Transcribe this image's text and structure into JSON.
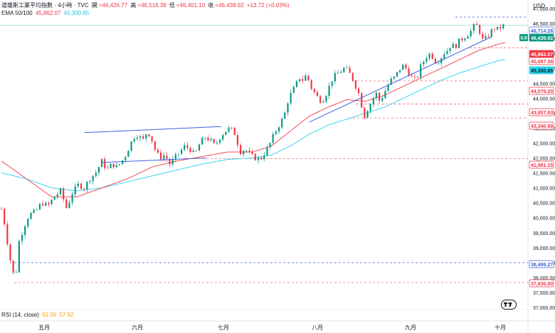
{
  "header": {
    "title": "道瓊斯工業平均指數 · 4小時 · TVC",
    "open_label": "開",
    "open": "=46,426.77",
    "high_label": "高",
    "high": "=46,518.39",
    "low_label": "低",
    "low": "=46,401.10",
    "close_label": "收",
    "close": "=46,439.92",
    "change": "+13.72 (+0.03%)"
  },
  "ema": {
    "label": "EMA 50/100",
    "ema50": "45,862.07",
    "ema100": "45,300.85"
  },
  "rsi": {
    "label": "RSI (14, close)",
    "value1": "61.06",
    "value2": "57.92"
  },
  "currency": "USD",
  "symbol_tag": "DJI",
  "colors": {
    "up": "#089981",
    "down": "#f23645",
    "ema50": "#f23645",
    "ema100": "#22d3ee",
    "trendline": "#3d63dd",
    "support": "#e74c5c",
    "current": "#089981"
  },
  "chart_data": {
    "type": "candlestick",
    "timeframe": "4h",
    "y_axis": {
      "min": 37000,
      "max": 47000,
      "ticks": [
        47000,
        46500,
        46000,
        45500,
        45000,
        44500,
        44000,
        43500,
        43000,
        42500,
        42000,
        41500,
        41000,
        40500,
        40000,
        39500,
        39000,
        38500,
        38000,
        37500,
        37000
      ]
    },
    "x_axis": {
      "labels": [
        "五月",
        "六月",
        "七月",
        "八月",
        "九月",
        "十月"
      ]
    },
    "grid": false,
    "price_labels": [
      {
        "value": 46714.26,
        "text": "46,714.26",
        "style": "blue"
      },
      {
        "value": 46439.92,
        "text": "46,439.92",
        "style": "current"
      },
      {
        "value": 45862.07,
        "text": "45,862.07",
        "style": "ema50"
      },
      {
        "value": 45687.38,
        "text": "45,687.38",
        "style": "red"
      },
      {
        "value": 45300.85,
        "text": "45,300.85",
        "style": "ema100"
      },
      {
        "value": 44579.2,
        "text": "44,579.20",
        "style": "red"
      },
      {
        "value": 43807.83,
        "text": "43,807.83",
        "style": "red"
      },
      {
        "value": 43340.69,
        "text": "43,340.69",
        "style": "red"
      },
      {
        "value": 41981.15,
        "text": "41,981.15",
        "style": "red"
      },
      {
        "value": 38499.27,
        "text": "38,499.27",
        "style": "blue"
      },
      {
        "value": 37830.0,
        "text": "37,830.00",
        "style": "red"
      }
    ],
    "horizontal_levels": [
      {
        "value": 46714.26,
        "color": "blue"
      },
      {
        "value": 45687.38,
        "color": "red"
      },
      {
        "value": 44579.2,
        "color": "red"
      },
      {
        "value": 43807.83,
        "color": "red"
      },
      {
        "value": 43340.69,
        "color": "red"
      },
      {
        "value": 41981.15,
        "color": "red"
      },
      {
        "value": 38499.27,
        "color": "blue"
      },
      {
        "value": 37830.0,
        "color": "red"
      }
    ],
    "price_path": [
      [
        0,
        40300
      ],
      [
        3,
        39700
      ],
      [
        6,
        38800
      ],
      [
        9,
        38200
      ],
      [
        11,
        37900
      ],
      [
        14,
        39200
      ],
      [
        18,
        39700
      ],
      [
        22,
        40100
      ],
      [
        27,
        40200
      ],
      [
        32,
        40500
      ],
      [
        37,
        40400
      ],
      [
        42,
        40700
      ],
      [
        47,
        40900
      ],
      [
        52,
        40300
      ],
      [
        56,
        40800
      ],
      [
        61,
        41100
      ],
      [
        66,
        41000
      ],
      [
        70,
        41300
      ],
      [
        75,
        41500
      ],
      [
        80,
        41900
      ],
      [
        84,
        41600
      ],
      [
        88,
        41800
      ],
      [
        92,
        41700
      ],
      [
        96,
        41900
      ],
      [
        99,
        42100
      ],
      [
        103,
        42500
      ],
      [
        107,
        42800
      ],
      [
        110,
        42700
      ],
      [
        113,
        42600
      ],
      [
        116,
        42900
      ],
      [
        119,
        42700
      ],
      [
        122,
        42300
      ],
      [
        126,
        42000
      ],
      [
        130,
        42100
      ],
      [
        134,
        41800
      ],
      [
        138,
        42000
      ],
      [
        142,
        42200
      ],
      [
        146,
        42400
      ],
      [
        150,
        42300
      ],
      [
        154,
        42100
      ],
      [
        158,
        42500
      ],
      [
        162,
        42700
      ],
      [
        166,
        42600
      ],
      [
        170,
        42400
      ],
      [
        174,
        42700
      ],
      [
        178,
        42900
      ],
      [
        182,
        43000
      ],
      [
        186,
        42800
      ],
      [
        190,
        42200
      ],
      [
        194,
        42300
      ],
      [
        198,
        42100
      ],
      [
        202,
        42000
      ],
      [
        206,
        41950
      ],
      [
        210,
        42200
      ],
      [
        214,
        42500
      ],
      [
        217,
        42800
      ],
      [
        221,
        43100
      ],
      [
        225,
        43400
      ],
      [
        228,
        43900
      ],
      [
        231,
        44200
      ],
      [
        234,
        44400
      ],
      [
        237,
        44700
      ],
      [
        240,
        44600
      ],
      [
        243,
        44800
      ],
      [
        246,
        44400
      ],
      [
        249,
        44200
      ],
      [
        252,
        44000
      ],
      [
        255,
        43900
      ],
      [
        258,
        44100
      ],
      [
        261,
        44400
      ],
      [
        264,
        44700
      ],
      [
        267,
        44800
      ],
      [
        270,
        44900
      ],
      [
        273,
        45000
      ],
      [
        276,
        44900
      ],
      [
        279,
        44700
      ],
      [
        282,
        44400
      ],
      [
        285,
        44100
      ],
      [
        287,
        43700
      ],
      [
        289,
        43400
      ],
      [
        292,
        43700
      ],
      [
        295,
        43900
      ],
      [
        298,
        44200
      ],
      [
        301,
        43900
      ],
      [
        304,
        44100
      ],
      [
        307,
        44400
      ],
      [
        310,
        44600
      ],
      [
        313,
        44700
      ],
      [
        316,
        44900
      ],
      [
        319,
        45100
      ],
      [
        322,
        45000
      ],
      [
        325,
        44800
      ],
      [
        328,
        44600
      ],
      [
        331,
        44700
      ],
      [
        334,
        45100
      ],
      [
        337,
        45300
      ],
      [
        340,
        45500
      ],
      [
        343,
        45400
      ],
      [
        346,
        45200
      ],
      [
        349,
        45300
      ],
      [
        352,
        45500
      ],
      [
        355,
        45600
      ],
      [
        358,
        45800
      ],
      [
        361,
        45700
      ],
      [
        364,
        45900
      ],
      [
        367,
        46000
      ],
      [
        370,
        46100
      ],
      [
        373,
        46200
      ],
      [
        376,
        46400
      ],
      [
        378,
        46450
      ],
      [
        381,
        46200
      ],
      [
        383,
        45950
      ],
      [
        386,
        46000
      ],
      [
        389,
        46200
      ],
      [
        392,
        46350
      ],
      [
        395,
        46300
      ],
      [
        398,
        46400
      ],
      [
        401,
        46440
      ]
    ],
    "ema50_path": [
      [
        0,
        41900
      ],
      [
        20,
        41300
      ],
      [
        40,
        40700
      ],
      [
        60,
        40700
      ],
      [
        80,
        41000
      ],
      [
        100,
        41300
      ],
      [
        120,
        41700
      ],
      [
        140,
        41900
      ],
      [
        160,
        42050
      ],
      [
        180,
        42200
      ],
      [
        200,
        42200
      ],
      [
        215,
        42400
      ],
      [
        230,
        42900
      ],
      [
        245,
        43400
      ],
      [
        260,
        43700
      ],
      [
        275,
        43950
      ],
      [
        290,
        43900
      ],
      [
        305,
        44100
      ],
      [
        320,
        44400
      ],
      [
        335,
        44700
      ],
      [
        350,
        45000
      ],
      [
        365,
        45300
      ],
      [
        380,
        45600
      ],
      [
        395,
        45800
      ],
      [
        401,
        45862
      ]
    ],
    "ema100_path": [
      [
        0,
        41500
      ],
      [
        20,
        41300
      ],
      [
        40,
        41000
      ],
      [
        60,
        40900
      ],
      [
        80,
        41000
      ],
      [
        100,
        41200
      ],
      [
        120,
        41400
      ],
      [
        140,
        41600
      ],
      [
        160,
        41800
      ],
      [
        180,
        41950
      ],
      [
        200,
        42000
      ],
      [
        215,
        42100
      ],
      [
        230,
        42400
      ],
      [
        245,
        42800
      ],
      [
        260,
        43100
      ],
      [
        275,
        43300
      ],
      [
        290,
        43500
      ],
      [
        305,
        43700
      ],
      [
        320,
        44000
      ],
      [
        335,
        44300
      ],
      [
        350,
        44600
      ],
      [
        365,
        44850
      ],
      [
        380,
        45050
      ],
      [
        395,
        45250
      ],
      [
        401,
        45300
      ]
    ],
    "trendlines": [
      {
        "from": [
          66,
          42850
        ],
        "to": [
          175,
          43050
        ]
      },
      {
        "from": [
          80,
          41850
        ],
        "to": [
          163,
          42000
        ]
      },
      {
        "from": [
          245,
          43200
        ],
        "to": [
          390,
          46050
        ]
      }
    ],
    "index_range": [
      0,
      401
    ]
  }
}
